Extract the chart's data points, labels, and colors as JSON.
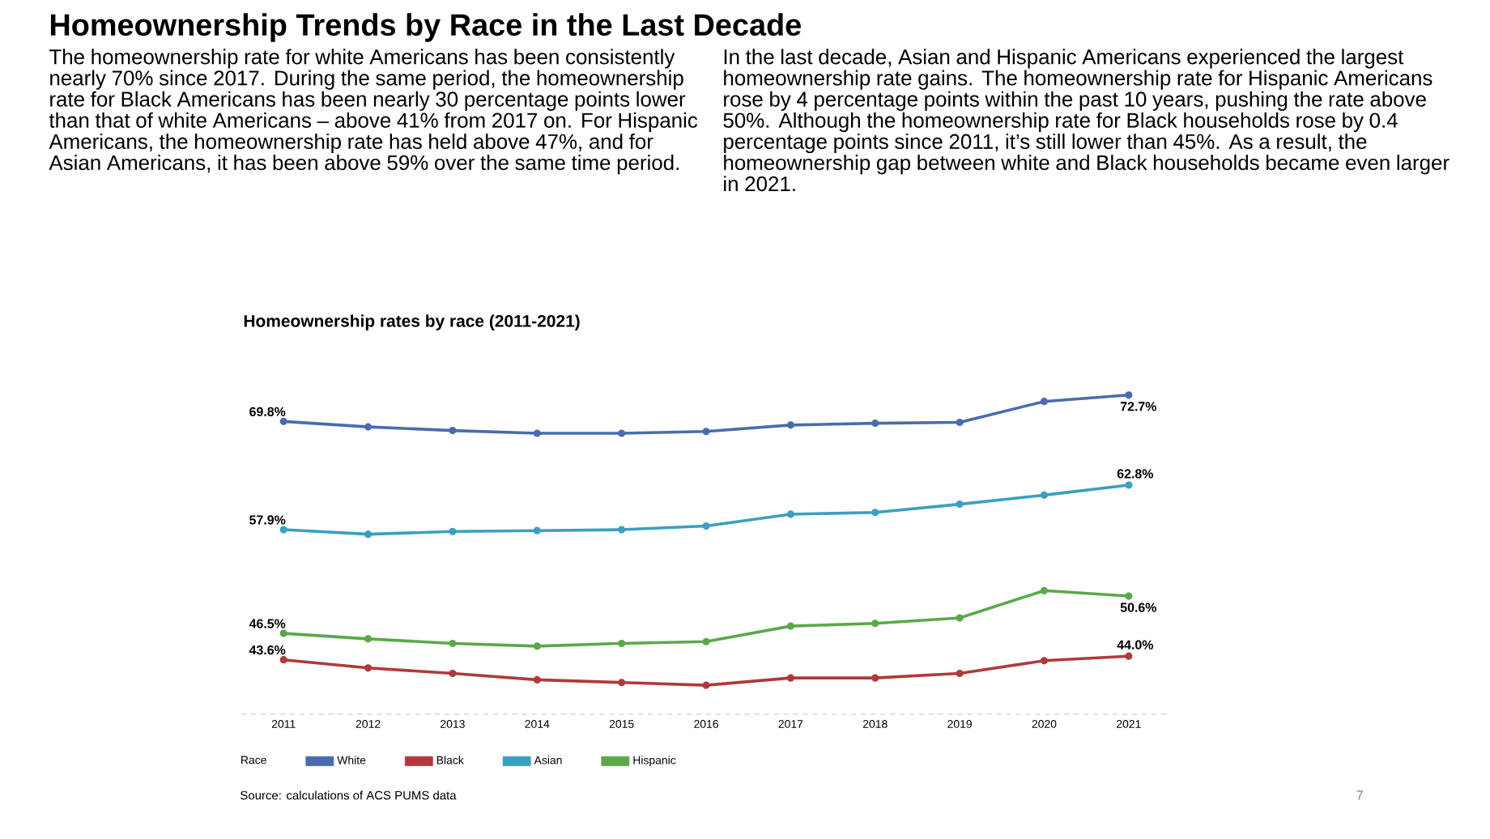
{
  "chart_data": {
    "type": "line",
    "title": "Homeownership Trends by Race in the Last Decade",
    "subtitle": "Homeownership rates by race (2011-2021)",
    "annotations": [
      "The homeownership rate for white Americans has been consistently nearly 70% since 2017. During the same period, the homeownership rate for Black Americans has been nearly 30 percentage points lower than that of white Americans – above 41% from 2017 on. For Hispanic Americans, the homeownership rate has held above 47%, and for Asian Americans, it has been above 59% over the same time period.",
      "In the last decade, Asian and Hispanic Americans experienced the largest homeownership rate gains. The homeownership rate for Hispanic Americans rose by 4 percentage points within the past 10 years, pushing the rate above 50%. Although the homeownership rate for Black households rose by 0.4 percentage points since 2011, it’s still lower than 45%. As a result, the homeownership gap between white and Black households became even larger in 2021.",
      "Source: calculations of ACS PUMS data",
      "7"
    ],
    "categories": [
      "2011",
      "2012",
      "2013",
      "2014",
      "2015",
      "2016",
      "2017",
      "2018",
      "2019",
      "2020",
      "2021"
    ],
    "legend_title": "Race",
    "series": [
      {
        "name": "White",
        "color": "#4a6cae",
        "values": [
          69.8,
          69.2,
          68.8,
          68.5,
          68.5,
          68.7,
          69.4,
          69.6,
          69.7,
          72.0,
          72.7
        ],
        "value_labels": [
          "69.8%",
          null,
          null,
          null,
          null,
          null,
          null,
          null,
          null,
          null,
          "72.7%"
        ]
      },
      {
        "name": "Black",
        "color": "#b0393d",
        "values": [
          43.6,
          42.7,
          42.1,
          41.4,
          41.1,
          40.8,
          41.6,
          41.6,
          42.1,
          43.5,
          44.0
        ],
        "value_labels": [
          "43.6%",
          null,
          null,
          null,
          null,
          null,
          null,
          null,
          null,
          null,
          "44.0%"
        ]
      },
      {
        "name": "Asian",
        "color": "#3b9fc1",
        "values": [
          57.9,
          57.4,
          57.7,
          57.8,
          57.9,
          58.3,
          59.6,
          59.8,
          60.7,
          61.7,
          62.8
        ],
        "value_labels": [
          "57.9%",
          null,
          null,
          null,
          null,
          null,
          null,
          null,
          null,
          null,
          "62.8%"
        ]
      },
      {
        "name": "Hispanic",
        "color": "#5ba84a",
        "values": [
          46.5,
          45.9,
          45.4,
          45.1,
          45.4,
          45.6,
          47.3,
          47.6,
          48.2,
          51.2,
          50.6
        ],
        "value_labels": [
          "46.5%",
          null,
          null,
          null,
          null,
          null,
          null,
          null,
          null,
          null,
          "50.6%"
        ]
      }
    ],
    "tick_labels": "x",
    "legend": "bottom left",
    "marker": "circle",
    "line_style": "solid",
    "grid": false
  }
}
